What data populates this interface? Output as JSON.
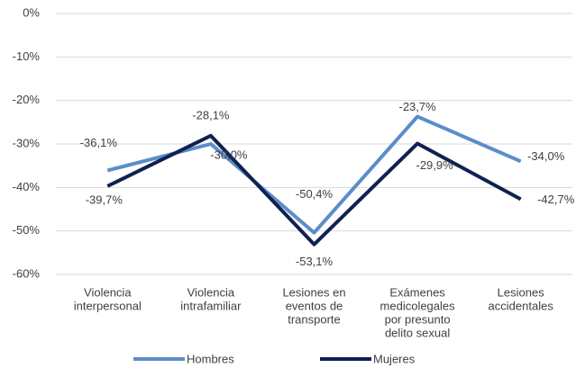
{
  "chart_data": {
    "type": "line",
    "categories": [
      [
        "Violencia",
        "interpersonal"
      ],
      [
        "Violencia",
        "intrafamiliar"
      ],
      [
        "Lesiones en",
        "eventos de",
        "transporte"
      ],
      [
        "Exámenes",
        "medicolegales",
        "por presunto",
        "delito sexual"
      ],
      [
        "Lesiones",
        "accidentales"
      ]
    ],
    "series": [
      {
        "name": "Hombres",
        "color": "#5b8dc9",
        "values": [
          -36.1,
          -30.0,
          -50.4,
          -23.7,
          -34.0
        ],
        "value_labels": [
          "-36,1%",
          "-30,0%",
          "-50,4%",
          "-23,7%",
          "-34,0%"
        ]
      },
      {
        "name": "Mujeres",
        "color": "#0f2150",
        "values": [
          -39.7,
          -28.1,
          -53.1,
          -29.9,
          -42.7
        ],
        "value_labels": [
          "-39,7%",
          "-28,1%",
          "-53,1%",
          "-29,9%",
          "-42,7%"
        ]
      }
    ],
    "ylim": [
      -60,
      0
    ],
    "yticks": [
      {
        "value": -60,
        "label": "-60%"
      },
      {
        "value": -50,
        "label": "-50%"
      },
      {
        "value": -40,
        "label": "-40%"
      },
      {
        "value": -30,
        "label": "-30%"
      },
      {
        "value": -20,
        "label": "-20%"
      },
      {
        "value": -10,
        "label": "-10%"
      },
      {
        "value": 0,
        "label": "0%"
      }
    ],
    "grid": true,
    "legend": "bottom"
  }
}
